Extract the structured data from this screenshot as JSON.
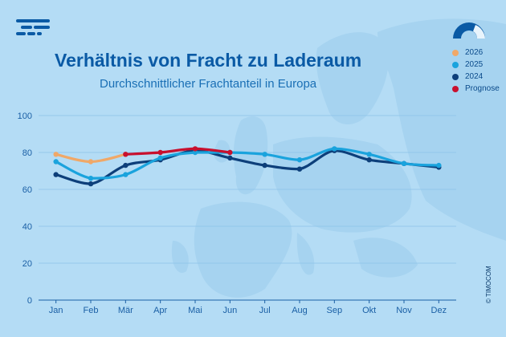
{
  "header": {
    "title": "Verhältnis von Fracht zu Laderaum",
    "subtitle": "Durchschnittlicher Frachtanteil in Europa"
  },
  "logo_icon": "timocom-logo-icon",
  "gauge_icon": "gauge-icon",
  "credit": "© TIMOCOM",
  "colors": {
    "background": "#b4dcf5",
    "grid": "#8cc3e8",
    "axis": "#1a5fa5",
    "title": "#0a5aa5"
  },
  "legend": [
    {
      "label": "2026",
      "color": "#f0a868"
    },
    {
      "label": "2025",
      "color": "#1aa3dd"
    },
    {
      "label": "2024",
      "color": "#0d3f7a"
    },
    {
      "label": "Prognose",
      "color": "#c8102e"
    }
  ],
  "chart_data": {
    "type": "line",
    "title": "Verhältnis von Fracht zu Laderaum",
    "subtitle": "Durchschnittlicher Frachtanteil in Europa",
    "xlabel": "",
    "ylabel": "",
    "categories": [
      "Jan",
      "Feb",
      "Mär",
      "Apr",
      "Mai",
      "Jun",
      "Jul",
      "Aug",
      "Sep",
      "Okt",
      "Nov",
      "Dez"
    ],
    "ylim": [
      0,
      100
    ],
    "yticks": [
      0,
      20,
      40,
      60,
      80,
      100
    ],
    "grid": true,
    "legend_position": "top-right",
    "series": [
      {
        "name": "2024",
        "color": "#0d3f7a",
        "values": [
          68,
          63,
          73,
          76,
          81,
          77,
          73,
          71,
          81,
          76,
          74,
          72
        ]
      },
      {
        "name": "2025",
        "color": "#1aa3dd",
        "values": [
          75,
          66,
          68,
          77,
          80,
          80,
          79,
          76,
          82,
          79,
          74,
          73
        ]
      },
      {
        "name": "2026",
        "color": "#f0a868",
        "values": [
          79,
          75,
          79,
          null,
          null,
          null,
          null,
          null,
          null,
          null,
          null,
          null
        ]
      },
      {
        "name": "Prognose",
        "color": "#c8102e",
        "values": [
          null,
          null,
          79,
          80,
          82,
          80,
          null,
          null,
          null,
          null,
          null,
          null
        ]
      }
    ]
  }
}
